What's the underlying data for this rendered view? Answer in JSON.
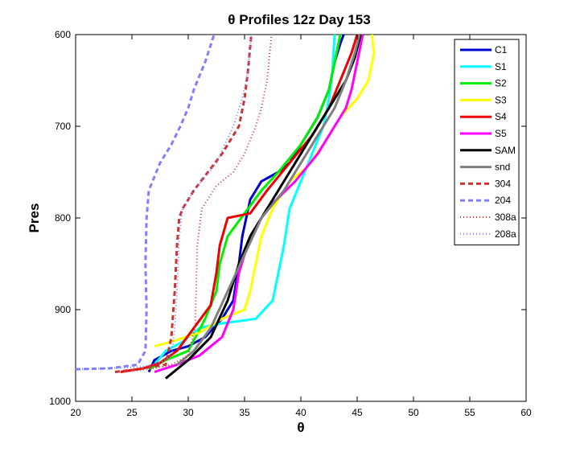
{
  "chart_data": {
    "type": "line",
    "title": "θ Profiles 12z Day 153",
    "xlabel": "θ",
    "ylabel": "Pres",
    "xlim": [
      20,
      60
    ],
    "ylim": [
      600,
      1000
    ],
    "y_reversed": true,
    "x_ticks": [
      "20",
      "25",
      "30",
      "35",
      "40",
      "45",
      "50",
      "55",
      "60"
    ],
    "y_ticks": [
      "600",
      "700",
      "800",
      "900",
      "1000"
    ],
    "grid": false,
    "legend_position": "top-right",
    "series": [
      {
        "name": "C1",
        "color": "#0000cc",
        "dash": "solid",
        "width": 3,
        "x": [
          26.5,
          27.0,
          28.5,
          30.0,
          31.5,
          33.0,
          34.0,
          34.5,
          34.8,
          35.5,
          36.5,
          38.0,
          39.0,
          39.5,
          40.5,
          41.5,
          42.5,
          43.0,
          43.5,
          43.8
        ],
        "y": [
          968,
          955,
          945,
          940,
          930,
          910,
          890,
          850,
          820,
          780,
          760,
          750,
          740,
          730,
          710,
          690,
          660,
          630,
          610,
          600
        ]
      },
      {
        "name": "S1",
        "color": "#00ffff",
        "dash": "solid",
        "width": 3,
        "x": [
          27.0,
          28.0,
          29.5,
          31.0,
          33.0,
          36.0,
          37.5,
          38.0,
          38.5,
          39.0,
          40.0,
          41.0,
          42.0,
          42.5,
          42.8,
          43.0
        ],
        "y": [
          960,
          945,
          935,
          920,
          915,
          910,
          890,
          860,
          830,
          790,
          760,
          730,
          700,
          670,
          640,
          600
        ]
      },
      {
        "name": "S2",
        "color": "#00ee00",
        "dash": "solid",
        "width": 3,
        "x": [
          26.5,
          28.0,
          30.0,
          31.5,
          32.5,
          32.8,
          33.5,
          35.0,
          36.5,
          38.0,
          40.0,
          41.5,
          42.5,
          43.0,
          43.5
        ],
        "y": [
          965,
          955,
          945,
          910,
          880,
          850,
          820,
          795,
          770,
          750,
          720,
          690,
          660,
          630,
          600
        ]
      },
      {
        "name": "S3",
        "color": "#ffff00",
        "dash": "solid",
        "width": 3,
        "x": [
          27.0,
          28.5,
          31.0,
          33.0,
          35.0,
          35.5,
          36.0,
          36.5,
          37.5,
          39.0,
          40.5,
          42.0,
          43.5,
          45.0,
          46.0,
          46.5,
          46.3
        ],
        "y": [
          940,
          935,
          925,
          910,
          900,
          880,
          850,
          820,
          790,
          760,
          745,
          720,
          690,
          670,
          650,
          620,
          600
        ]
      },
      {
        "name": "S4",
        "color": "#ee0000",
        "dash": "solid",
        "width": 3,
        "x": [
          24.0,
          26.0,
          27.5,
          29.0,
          30.5,
          32.0,
          32.5,
          32.8,
          33.5,
          35.5,
          37.0,
          39.0,
          41.0,
          42.5,
          43.5,
          44.5,
          45.0
        ],
        "y": [
          968,
          964,
          958,
          945,
          920,
          895,
          860,
          830,
          800,
          795,
          770,
          740,
          710,
          680,
          650,
          620,
          600
        ]
      },
      {
        "name": "S5",
        "color": "#ff00ff",
        "dash": "solid",
        "width": 3,
        "x": [
          27.0,
          29.0,
          31.0,
          33.0,
          34.0,
          34.5,
          35.5,
          37.0,
          39.5,
          41.5,
          43.0,
          44.0,
          44.5,
          45.0,
          45.5
        ],
        "y": [
          968,
          960,
          950,
          930,
          900,
          860,
          820,
          790,
          760,
          730,
          700,
          680,
          660,
          630,
          600
        ]
      },
      {
        "name": "SAM",
        "color": "#000000",
        "dash": "solid",
        "width": 3,
        "x": [
          28.0,
          30.0,
          32.0,
          33.5,
          34.5,
          35.5,
          37.0,
          38.5,
          40.0,
          41.5,
          43.0,
          44.0,
          44.8,
          45.3
        ],
        "y": [
          975,
          955,
          930,
          890,
          850,
          820,
          790,
          760,
          730,
          700,
          670,
          650,
          625,
          600
        ]
      },
      {
        "name": "snd",
        "color": "#7f7f7f",
        "dash": "solid",
        "width": 3,
        "x": [
          29.0,
          30.5,
          32.0,
          33.5,
          35.0,
          36.5,
          38.5,
          40.0,
          41.5,
          43.0,
          44.0,
          44.8,
          45.2
        ],
        "y": [
          960,
          945,
          920,
          880,
          840,
          800,
          770,
          740,
          710,
          680,
          650,
          620,
          600
        ]
      },
      {
        "name": "304",
        "color": "#cc3333",
        "dash": "6,4",
        "width": 3,
        "x": [
          23.5,
          25.5,
          28.0,
          28.5,
          28.8,
          29.0,
          29.2,
          29.5,
          30.5,
          33.0,
          34.5,
          35.0,
          35.3,
          35.6
        ],
        "y": [
          968,
          965,
          960,
          930,
          880,
          830,
          800,
          790,
          770,
          730,
          700,
          670,
          640,
          600
        ]
      },
      {
        "name": "204",
        "color": "#7f7fff",
        "dash": "6,4",
        "width": 3,
        "x": [
          20.0,
          23.0,
          25.5,
          26.2,
          26.3,
          26.2,
          26.3,
          26.5,
          27.5,
          28.5,
          29.3,
          30.0,
          30.5,
          31.5,
          32.3
        ],
        "y": [
          965,
          964,
          960,
          945,
          900,
          850,
          800,
          770,
          740,
          720,
          700,
          680,
          660,
          630,
          600
        ]
      },
      {
        "name": "308a",
        "color": "#cc3333",
        "dash": "1,3",
        "width": 2,
        "x": [
          24.0,
          27.0,
          28.5,
          30.0,
          30.6,
          30.7,
          30.8,
          31.2,
          32.5,
          34.0,
          35.0,
          36.0,
          36.5,
          37.0,
          37.4
        ],
        "y": [
          968,
          964,
          960,
          950,
          920,
          880,
          830,
          790,
          765,
          750,
          730,
          700,
          680,
          650,
          600
        ]
      },
      {
        "name": "208a",
        "color": "#7f7fff",
        "dash": "1,3",
        "width": 2,
        "x": [
          20.0,
          23.0,
          26.0,
          27.5,
          28.5,
          28.8,
          29.0,
          29.2,
          29.5,
          30.5,
          32.5,
          34.0,
          34.8,
          35.3,
          35.6
        ],
        "y": [
          965,
          964,
          962,
          958,
          950,
          920,
          880,
          820,
          790,
          770,
          740,
          700,
          670,
          640,
          600
        ]
      }
    ]
  }
}
